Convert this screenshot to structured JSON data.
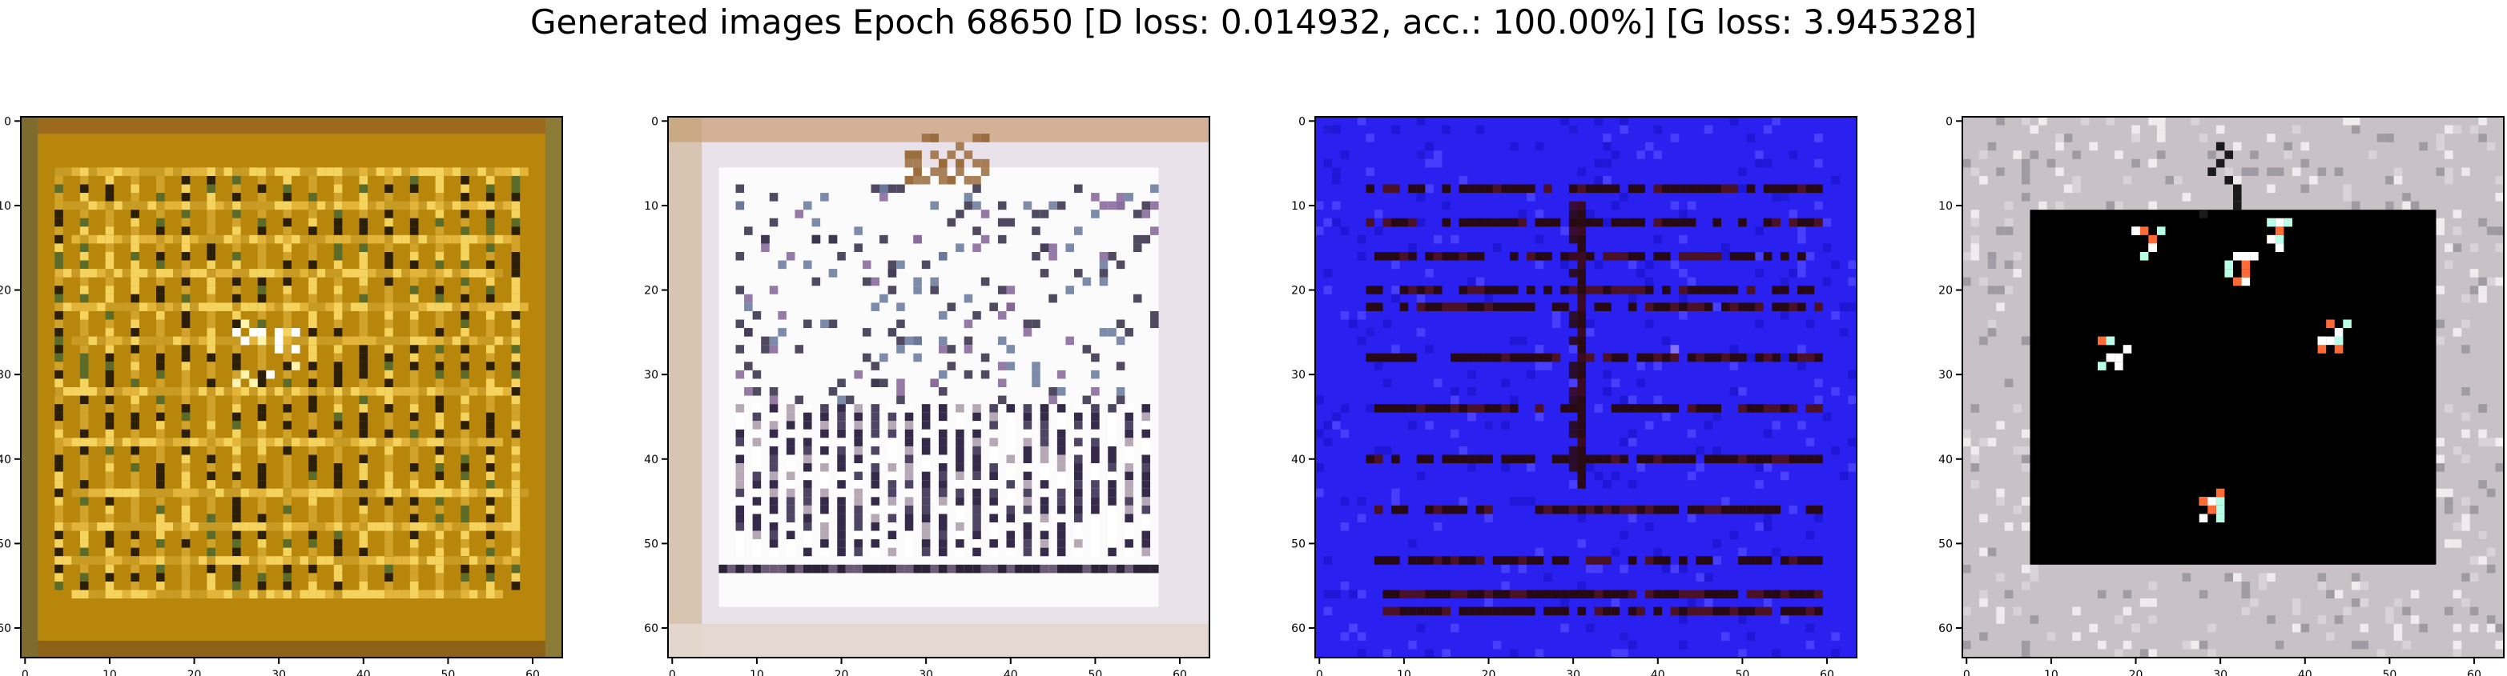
{
  "figure": {
    "title": "Generated images Epoch 68650 [D loss: 0.014932, acc.: 100.00%] [G loss: 3.945328]"
  },
  "axes_ticks": {
    "x": [
      "0",
      "10",
      "20",
      "30",
      "40",
      "50",
      "60"
    ],
    "y": [
      "0",
      "10",
      "20",
      "30",
      "40",
      "50",
      "60"
    ]
  },
  "panels": [
    {
      "name": "generated-image-1",
      "palette": {
        "bg": "#b8860b",
        "light": "#f4d35e",
        "dark": "#3a2c05",
        "accent": "#5a6b2a",
        "stripe": "#2b1f0a"
      },
      "style": "golden-grid"
    },
    {
      "name": "generated-image-2",
      "palette": {
        "bg": "#e9e2ea",
        "light": "#ffffff",
        "dark": "#1e1b2c",
        "accent": "#b9804a",
        "stripe": "#352a4a"
      },
      "style": "light-grid"
    },
    {
      "name": "generated-image-3",
      "palette": {
        "bg": "#2a20f0",
        "light": "#4a42ff",
        "dark": "#2a0b14",
        "accent": "#8d7bff",
        "stripe": "#260913"
      },
      "style": "blue-lines"
    },
    {
      "name": "generated-image-4",
      "palette": {
        "bg": "#c8c2c6",
        "light": "#f2eef0",
        "dark": "#000000",
        "accent": "#ff6a35",
        "stripe": "#2e2a2c"
      },
      "style": "black-center"
    }
  ]
}
